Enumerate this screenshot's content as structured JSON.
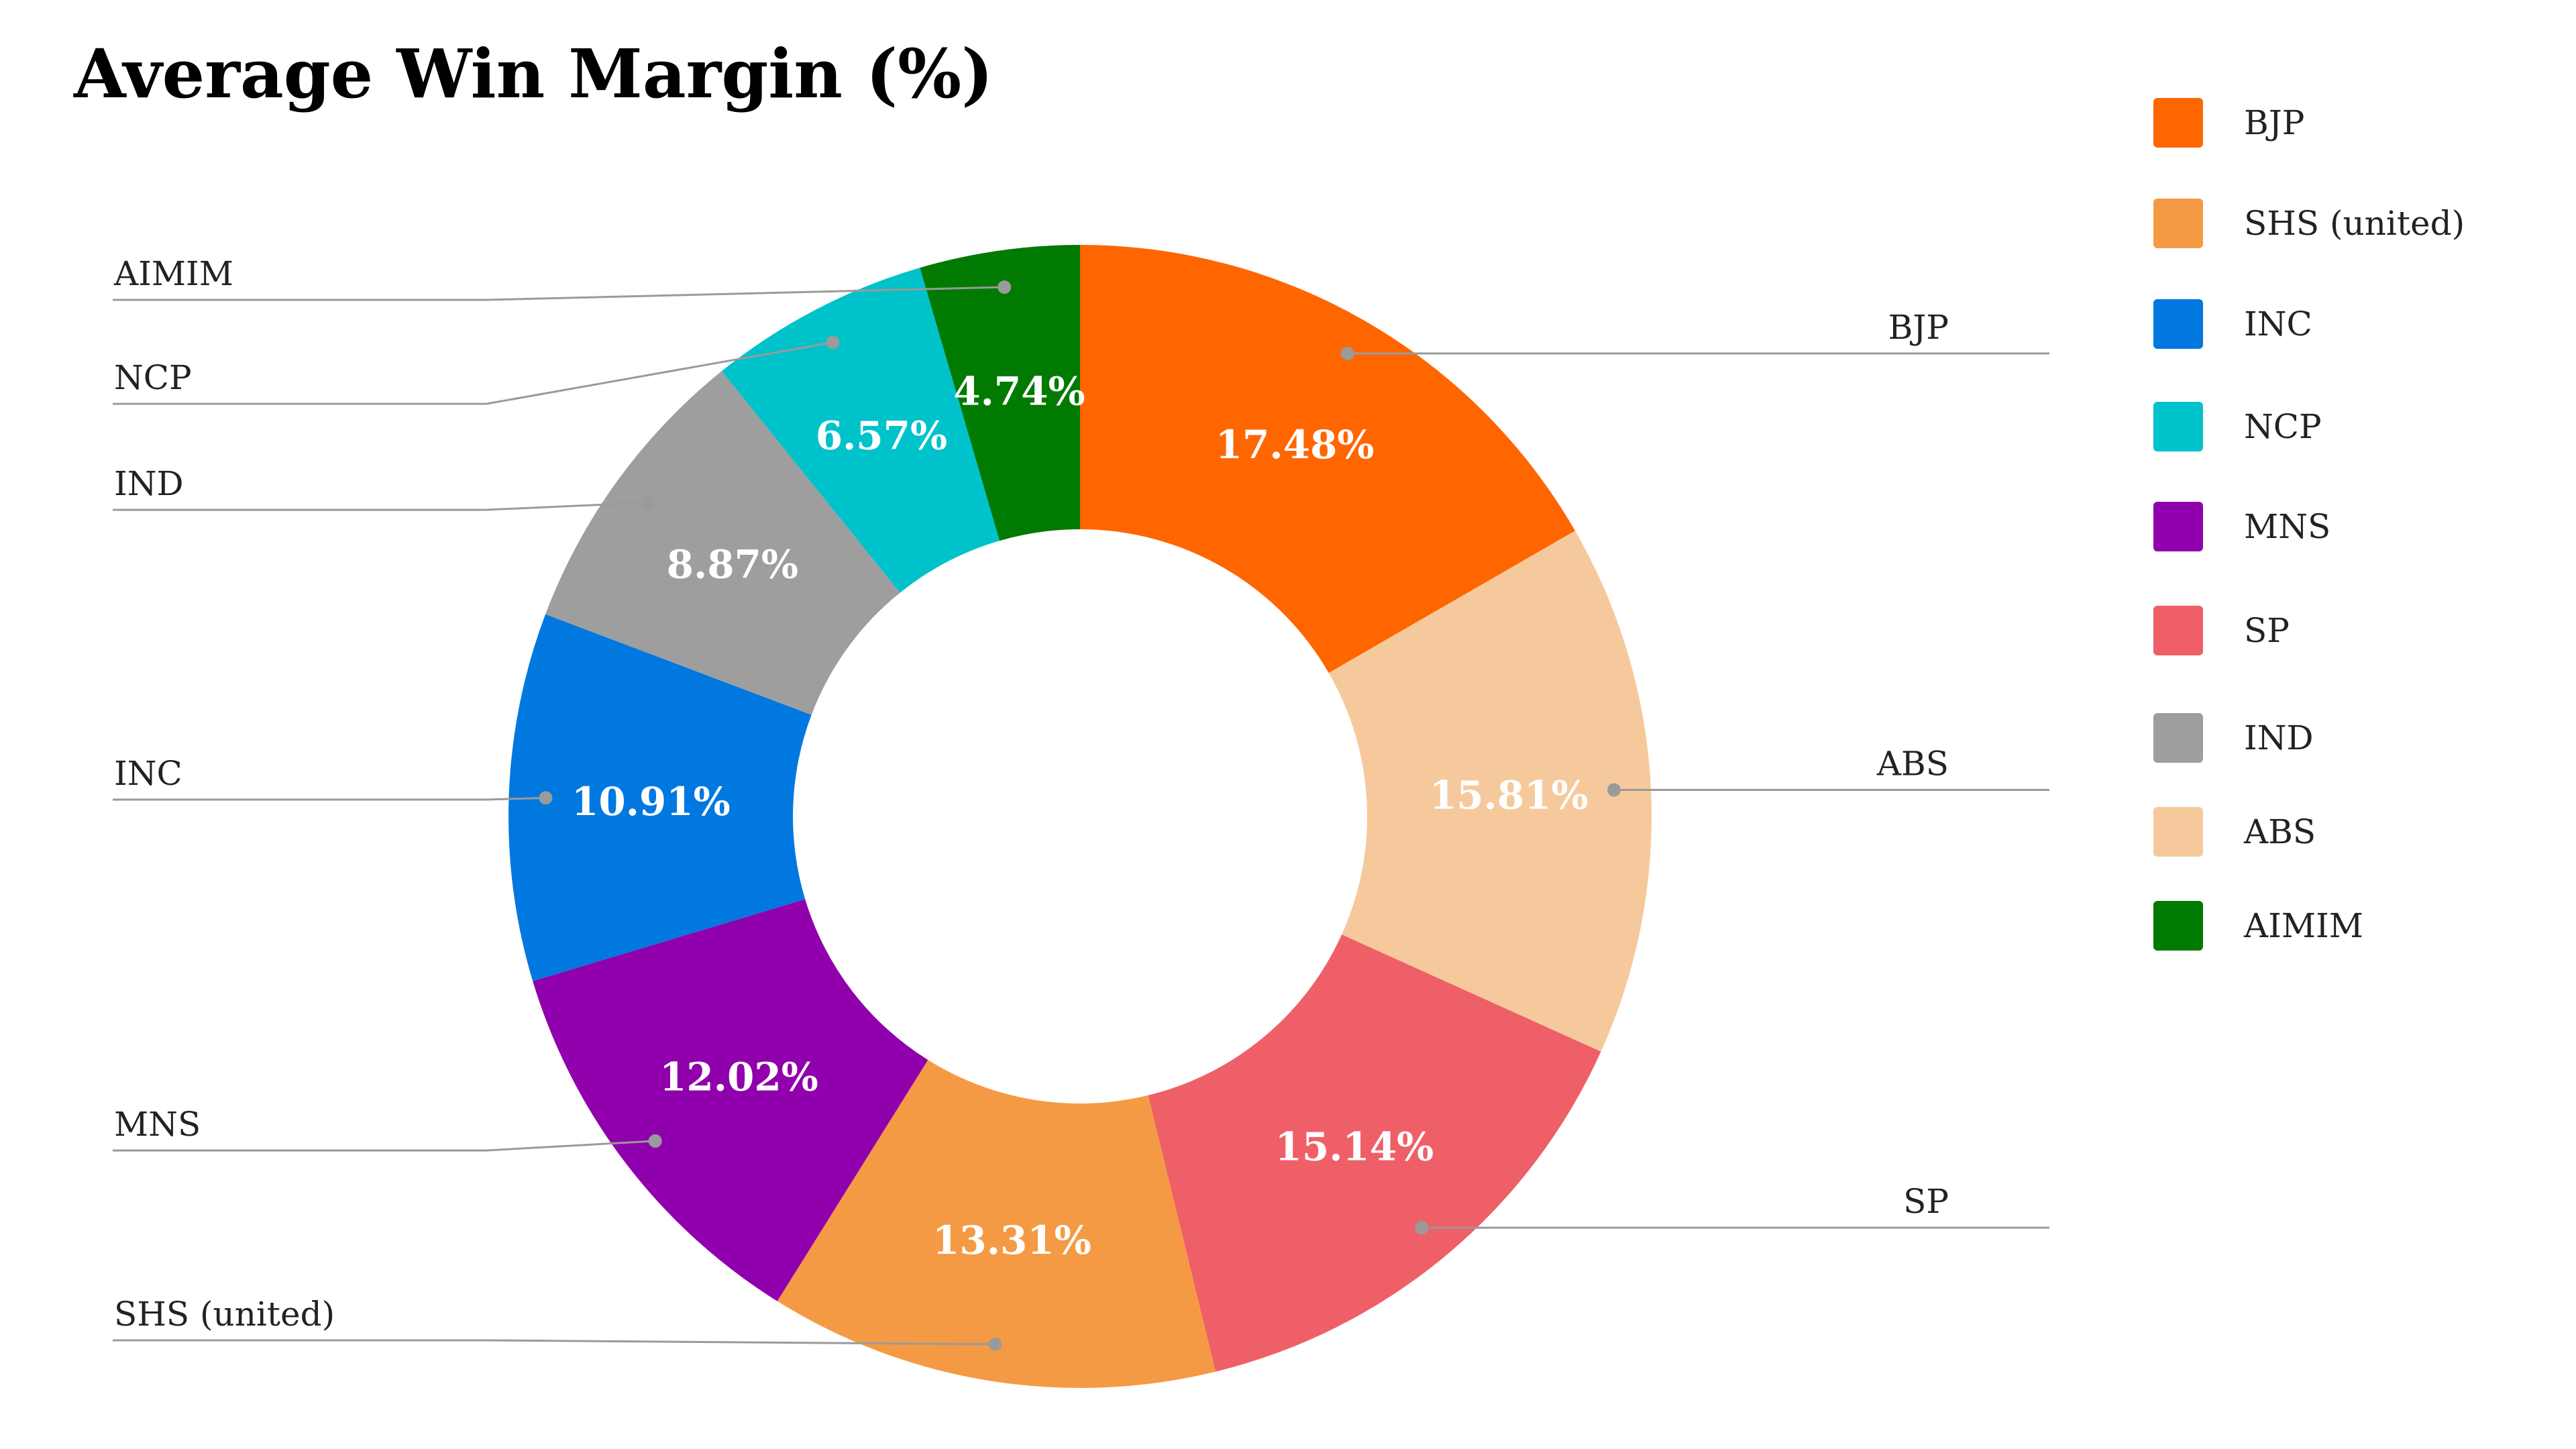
{
  "chart_data": {
    "type": "pie",
    "title": "Average Win Margin (%)",
    "donut": true,
    "categories": [
      "BJP",
      "ABS",
      "SP",
      "SHS (united)",
      "MNS",
      "INC",
      "IND",
      "NCP",
      "AIMIM"
    ],
    "values": [
      17.48,
      15.81,
      15.14,
      13.31,
      12.02,
      10.91,
      8.87,
      6.57,
      4.74
    ],
    "value_labels": [
      "17.48%",
      "15.81%",
      "15.14%",
      "13.31%",
      "12.02%",
      "10.91%",
      "8.87%",
      "6.57%",
      "4.74%"
    ],
    "colors": [
      "#ff6600",
      "#f6c99c",
      "#ef5f67",
      "#f59a44",
      "#9000ac",
      "#0078e0",
      "#9e9e9e",
      "#00c2cb",
      "#007a00"
    ],
    "callout_labels": [
      "BJP",
      "ABS",
      "SP",
      "SHS (united)",
      "MNS",
      "INC",
      "IND",
      "NCP",
      "AIMIM"
    ],
    "legend": {
      "position": "right",
      "entries": [
        {
          "label": "BJP",
          "color": "#ff6600"
        },
        {
          "label": "SHS (united)",
          "color": "#f59a44"
        },
        {
          "label": "INC",
          "color": "#0078e0"
        },
        {
          "label": "NCP",
          "color": "#00c2cb"
        },
        {
          "label": "MNS",
          "color": "#9000ac"
        },
        {
          "label": "SP",
          "color": "#ef5f67"
        },
        {
          "label": "IND",
          "color": "#9e9e9e"
        },
        {
          "label": "ABS",
          "color": "#f6c99c"
        },
        {
          "label": "AIMIM",
          "color": "#007a00"
        }
      ]
    }
  }
}
